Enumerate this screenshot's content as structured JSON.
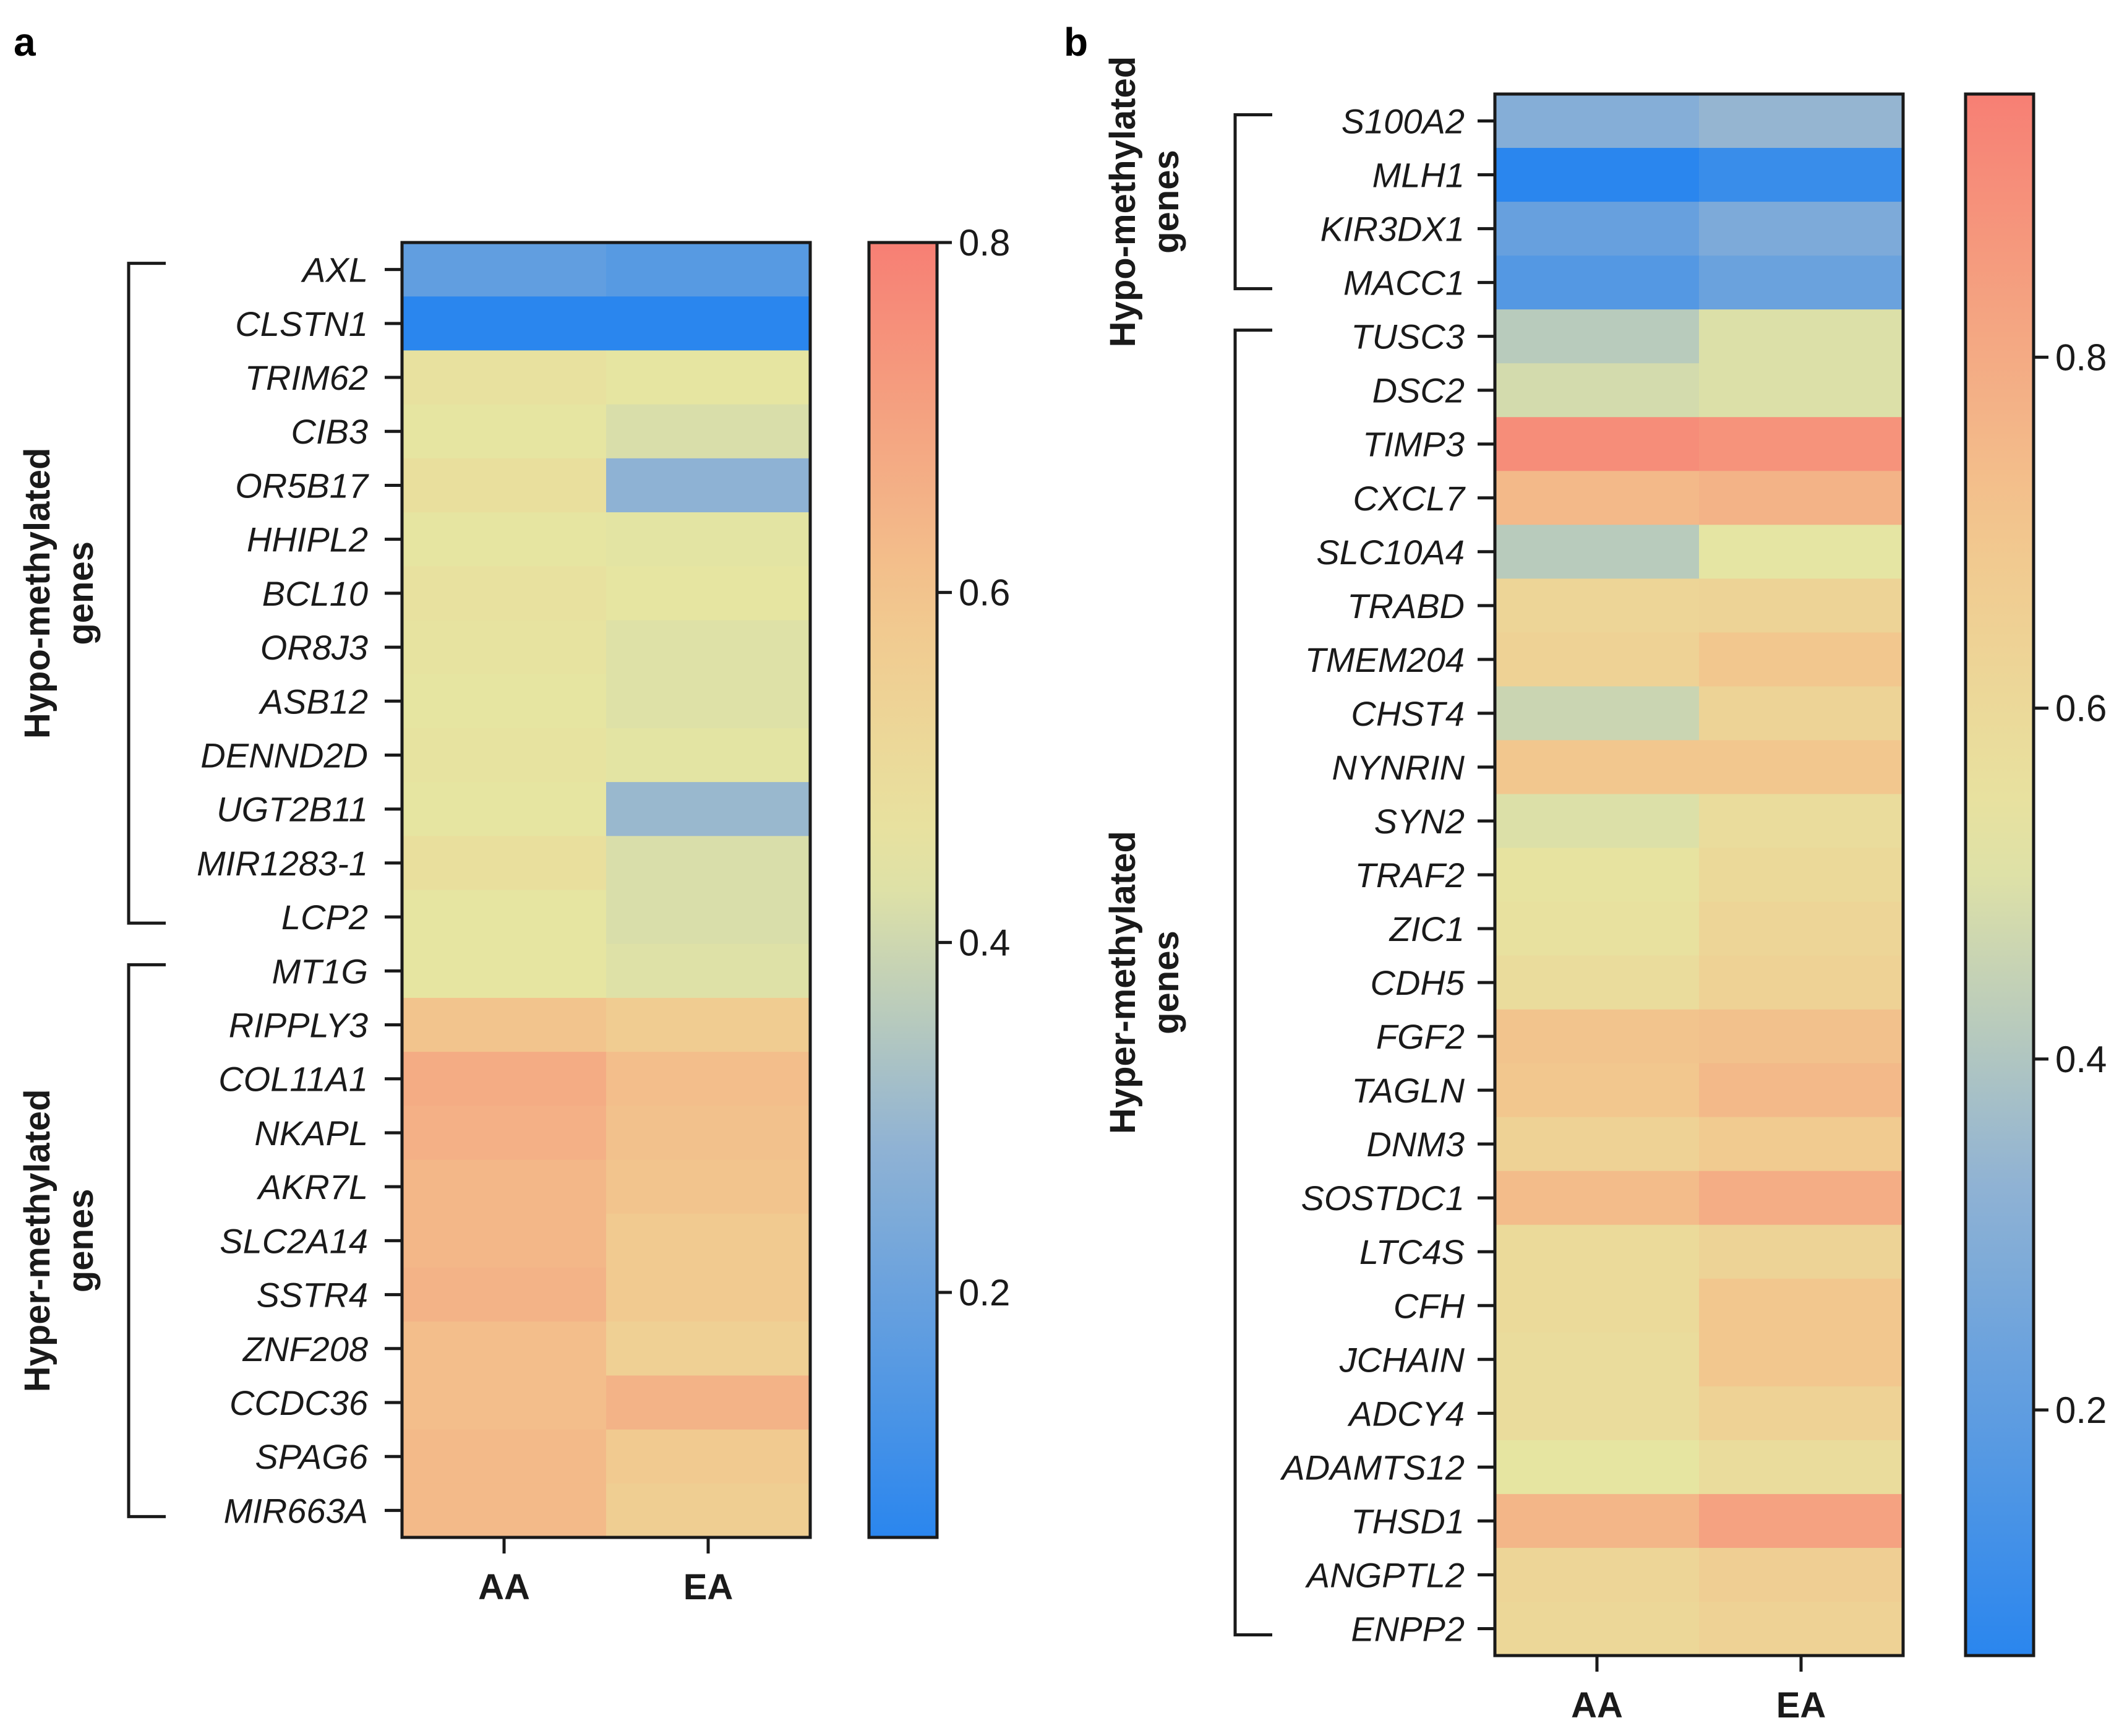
{
  "colors": {
    "low": "#2a86ee",
    "mid_blue": "#8fb2d4",
    "mid": "#e6e6a2",
    "warm": "#f2c78e",
    "high": "#f77f74",
    "axis": "#1a1a1a"
  },
  "chart_data": [
    {
      "panel": "a",
      "type": "heatmap",
      "x": [
        "AA",
        "EA"
      ],
      "y": [
        "AXL",
        "CLSTN1",
        "TRIM62",
        "CIB3",
        "OR5B17",
        "HHIPL2",
        "BCL10",
        "OR8J3",
        "ASB12",
        "DENND2D",
        "UGT2B11",
        "MIR1283-1",
        "LCP2",
        "MT1G",
        "RIPPLY3",
        "COL11A1",
        "NKAPL",
        "AKR7L",
        "SLC2A14",
        "SSTR4",
        "ZNF208",
        "CCDC36",
        "SPAG6",
        "MIR663A"
      ],
      "values": [
        [
          0.18,
          0.16
        ],
        [
          0.06,
          0.06
        ],
        [
          0.47,
          0.45
        ],
        [
          0.45,
          0.42
        ],
        [
          0.48,
          0.28
        ],
        [
          0.45,
          0.44
        ],
        [
          0.47,
          0.45
        ],
        [
          0.46,
          0.43
        ],
        [
          0.45,
          0.43
        ],
        [
          0.46,
          0.44
        ],
        [
          0.45,
          0.3
        ],
        [
          0.48,
          0.42
        ],
        [
          0.45,
          0.42
        ],
        [
          0.45,
          0.43
        ],
        [
          0.6,
          0.57
        ],
        [
          0.67,
          0.62
        ],
        [
          0.66,
          0.61
        ],
        [
          0.64,
          0.6
        ],
        [
          0.64,
          0.58
        ],
        [
          0.65,
          0.58
        ],
        [
          0.62,
          0.55
        ],
        [
          0.62,
          0.65
        ],
        [
          0.63,
          0.58
        ],
        [
          0.63,
          0.56
        ]
      ],
      "colorbar": {
        "min": 0.06,
        "max": 0.8,
        "ticks": [
          0.2,
          0.4,
          0.6,
          0.8
        ],
        "tick_labels": [
          "0.2",
          "0.4",
          "0.6",
          "0.8"
        ]
      },
      "groups": [
        {
          "label": "Hypo-methylated genes",
          "lines": [
            "Hypo-methylated",
            "genes"
          ],
          "from": 0,
          "to": 12
        },
        {
          "label": "Hyper-methylated genes",
          "lines": [
            "Hyper-methylated",
            "genes"
          ],
          "from": 13,
          "to": 23
        }
      ]
    },
    {
      "panel": "b",
      "type": "heatmap",
      "x": [
        "AA",
        "EA"
      ],
      "y": [
        "S100A2",
        "MLH1",
        "KIR3DX1",
        "MACC1",
        "TUSC3",
        "DSC2",
        "TIMP3",
        "CXCL7",
        "SLC10A4",
        "TRABD",
        "TMEM204",
        "CHST4",
        "NYNRIN",
        "SYN2",
        "TRAF2",
        "ZIC1",
        "CDH5",
        "FGF2",
        "TAGLN",
        "DNM3",
        "SOSTDC1",
        "LTC4S",
        "CFH",
        "JCHAIN",
        "ADCY4",
        "ADAMTS12",
        "THSD1",
        "ANGPTL2",
        "ENPP2"
      ],
      "values": [
        [
          0.3,
          0.34
        ],
        [
          0.06,
          0.1
        ],
        [
          0.22,
          0.28
        ],
        [
          0.17,
          0.23
        ],
        [
          0.42,
          0.5
        ],
        [
          0.48,
          0.5
        ],
        [
          0.9,
          0.88
        ],
        [
          0.75,
          0.77
        ],
        [
          0.42,
          0.52
        ],
        [
          0.62,
          0.63
        ],
        [
          0.64,
          0.7
        ],
        [
          0.46,
          0.63
        ],
        [
          0.7,
          0.7
        ],
        [
          0.5,
          0.58
        ],
        [
          0.54,
          0.6
        ],
        [
          0.55,
          0.62
        ],
        [
          0.58,
          0.64
        ],
        [
          0.71,
          0.72
        ],
        [
          0.7,
          0.75
        ],
        [
          0.64,
          0.68
        ],
        [
          0.74,
          0.79
        ],
        [
          0.59,
          0.63
        ],
        [
          0.59,
          0.7
        ],
        [
          0.58,
          0.7
        ],
        [
          0.58,
          0.64
        ],
        [
          0.53,
          0.58
        ],
        [
          0.76,
          0.83
        ],
        [
          0.62,
          0.66
        ],
        [
          0.61,
          0.64
        ]
      ],
      "colorbar": {
        "min": 0.06,
        "max": 0.95,
        "ticks": [
          0.2,
          0.4,
          0.6,
          0.8
        ],
        "tick_labels": [
          "0.2",
          "0.4",
          "0.6",
          "0.8"
        ]
      },
      "groups": [
        {
          "label": "Hypo-methylated genes",
          "lines": [
            "Hypo-methylated",
            "genes"
          ],
          "from": 0,
          "to": 3
        },
        {
          "label": "Hyper-methylated genes",
          "lines": [
            "Hyper-methylated",
            "genes"
          ],
          "from": 4,
          "to": 28
        }
      ]
    }
  ]
}
